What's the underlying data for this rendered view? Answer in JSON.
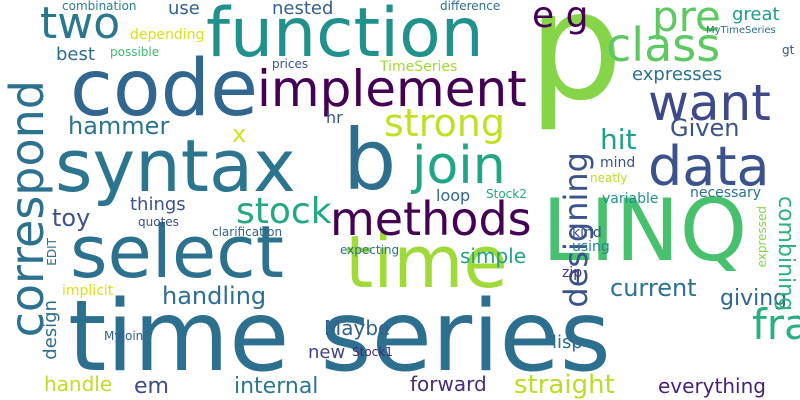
{
  "words": [
    {
      "text": "p",
      "color": "#86d549"
    },
    {
      "text": "time series",
      "color": "#2d6f8e"
    },
    {
      "text": "code",
      "color": "#31668e"
    },
    {
      "text": "function",
      "color": "#21918c"
    },
    {
      "text": "syntax",
      "color": "#2b758e"
    },
    {
      "text": "LINQ",
      "color": "#48c16e"
    },
    {
      "text": "select",
      "color": "#2c728e"
    },
    {
      "text": "time",
      "color": "#a0da39"
    },
    {
      "text": "b",
      "color": "#2e6e8e"
    },
    {
      "text": "implement",
      "color": "#440154"
    },
    {
      "text": "correspond",
      "color": "#2c718e"
    },
    {
      "text": "want",
      "color": "#3f4889"
    },
    {
      "text": "class",
      "color": "#5ec962"
    },
    {
      "text": "data",
      "color": "#3b528b"
    },
    {
      "text": "join",
      "color": "#21a685"
    },
    {
      "text": "methods",
      "color": "#440154"
    },
    {
      "text": "two",
      "color": "#2a788e"
    },
    {
      "text": "stock",
      "color": "#22a884"
    },
    {
      "text": "strong",
      "color": "#c2df23"
    },
    {
      "text": "pre",
      "color": "#5ec962"
    },
    {
      "text": "e g",
      "color": "#440154"
    },
    {
      "text": "designing",
      "color": "#3b528b"
    },
    {
      "text": "handling",
      "color": "#2e6e8e"
    },
    {
      "text": "hammer",
      "color": "#2c738e"
    },
    {
      "text": "x",
      "color": "#d2e21b"
    },
    {
      "text": "framework",
      "color": "#2ab07f"
    },
    {
      "text": "internal",
      "color": "#2a788e"
    },
    {
      "text": "straight",
      "color": "#b8de29"
    },
    {
      "text": "simple",
      "color": "#1fa088"
    },
    {
      "text": "current",
      "color": "#2c728e"
    },
    {
      "text": "Given",
      "color": "#3b528b"
    },
    {
      "text": "em",
      "color": "#3e4a89"
    },
    {
      "text": "hit",
      "color": "#1fa187"
    },
    {
      "text": "toy",
      "color": "#3b528b"
    },
    {
      "text": "nested",
      "color": "#34618d"
    },
    {
      "text": "great",
      "color": "#1f9e89"
    },
    {
      "text": "giving",
      "color": "#31668e"
    },
    {
      "text": "combining",
      "color": "#2db27d"
    },
    {
      "text": "everything",
      "color": "#482475"
    },
    {
      "text": "forward",
      "color": "#472d7b"
    },
    {
      "text": "handle",
      "color": "#bddf26"
    },
    {
      "text": "Maybe",
      "color": "#33638d"
    },
    {
      "text": "expresses",
      "color": "#2c728e"
    },
    {
      "text": "things",
      "color": "#3b528b"
    },
    {
      "text": "best",
      "color": "#2f6c8e"
    },
    {
      "text": "use",
      "color": "#33638d"
    },
    {
      "text": "new",
      "color": "#414487"
    },
    {
      "text": "lisp",
      "color": "#2e6e8e"
    },
    {
      "text": "design",
      "color": "#2e6e8e"
    },
    {
      "text": "depending",
      "color": "#d8e219"
    },
    {
      "text": "TimeSeries",
      "color": "#a0da39"
    },
    {
      "text": "loop",
      "color": "#31678e"
    },
    {
      "text": "hr",
      "color": "#3b528b"
    },
    {
      "text": "mind",
      "color": "#3b528b"
    },
    {
      "text": "variable",
      "color": "#20928c"
    },
    {
      "text": "Stock2",
      "color": "#22a884"
    },
    {
      "text": "Stock1",
      "color": "#482475"
    },
    {
      "text": "zip",
      "color": "#46337e"
    },
    {
      "text": "kind",
      "color": "#3b528b"
    },
    {
      "text": "using",
      "color": "#26828e"
    },
    {
      "text": "neatly",
      "color": "#b5de2b"
    },
    {
      "text": "necessary",
      "color": "#2c718e"
    },
    {
      "text": "expressed",
      "color": "#84d44b"
    },
    {
      "text": "implicit",
      "color": "#d8e219"
    },
    {
      "text": "MyJoin",
      "color": "#34618d"
    },
    {
      "text": "EDIT",
      "color": "#2d708e"
    },
    {
      "text": "quotes",
      "color": "#3b528b"
    },
    {
      "text": "clarification",
      "color": "#33638d"
    },
    {
      "text": "expecting",
      "color": "#2c728e"
    },
    {
      "text": "prices",
      "color": "#3b528b"
    },
    {
      "text": "possible",
      "color": "#3fbc73"
    },
    {
      "text": "combination",
      "color": "#26828e"
    },
    {
      "text": "difference",
      "color": "#2c718e"
    },
    {
      "text": "MyTimeSeries",
      "color": "#2d708e"
    },
    {
      "text": "gt",
      "color": "#3b528b"
    }
  ]
}
